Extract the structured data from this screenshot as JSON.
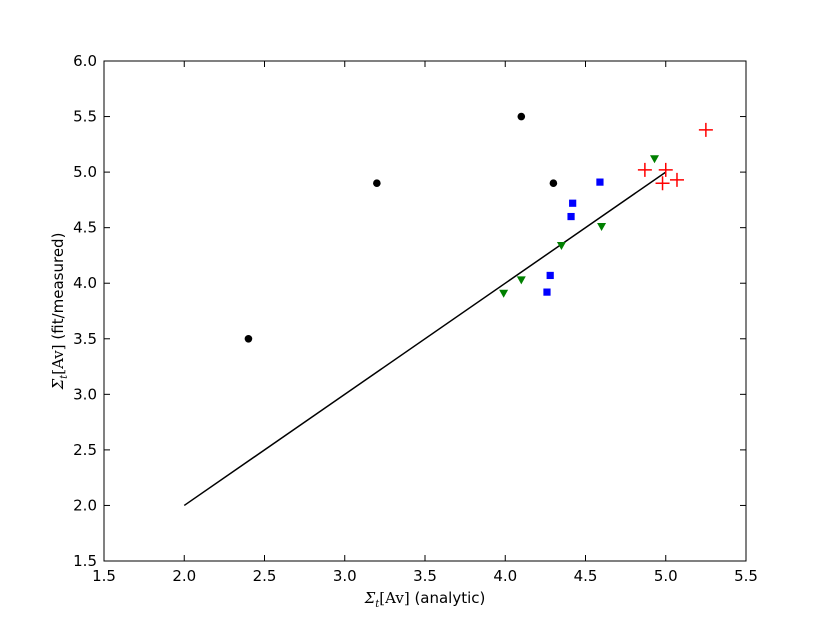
{
  "chart_data": {
    "type": "scatter",
    "title": "",
    "xlabel": "Σ_t[Av] (analytic)",
    "ylabel": "Σ_t[Av] (fit/measured)",
    "xlabel_math": "Σ",
    "xlabel_sub": "t",
    "xlabel_bracket": "[Av]",
    "xlabel_text": " (analytic)",
    "ylabel_math": "Σ",
    "ylabel_sub": "t",
    "ylabel_bracket": "[Av]",
    "ylabel_text": " (fit/measured)",
    "xlim": [
      1.5,
      5.5
    ],
    "ylim": [
      1.5,
      6.0
    ],
    "xticks": [
      "1.5",
      "2.0",
      "2.5",
      "3.0",
      "3.5",
      "4.0",
      "4.5",
      "5.0",
      "5.5"
    ],
    "yticks": [
      "1.5",
      "2.0",
      "2.5",
      "3.0",
      "3.5",
      "4.0",
      "4.5",
      "5.0",
      "5.5",
      "6.0"
    ],
    "grid": false,
    "line": {
      "x": [
        2.0,
        5.0
      ],
      "y": [
        2.0,
        5.0
      ],
      "color": "#000000"
    },
    "series": [
      {
        "marker": "circle",
        "color": "#000000",
        "points": [
          [
            2.4,
            3.5
          ],
          [
            3.2,
            4.9
          ],
          [
            4.1,
            5.5
          ],
          [
            4.3,
            4.9
          ]
        ]
      },
      {
        "marker": "square",
        "color": "#0000ff",
        "points": [
          [
            4.26,
            3.92
          ],
          [
            4.28,
            4.07
          ],
          [
            4.41,
            4.6
          ],
          [
            4.42,
            4.72
          ],
          [
            4.59,
            4.91
          ]
        ]
      },
      {
        "marker": "triangle-down",
        "color": "#008000",
        "points": [
          [
            3.99,
            3.91
          ],
          [
            4.1,
            4.03
          ],
          [
            4.35,
            4.34
          ],
          [
            4.6,
            4.51
          ],
          [
            4.93,
            5.12
          ]
        ]
      },
      {
        "marker": "plus",
        "color": "#ff0000",
        "points": [
          [
            4.87,
            5.02
          ],
          [
            4.98,
            4.9
          ],
          [
            5.0,
            5.02
          ],
          [
            5.07,
            4.93
          ],
          [
            5.25,
            5.38
          ]
        ]
      }
    ]
  }
}
